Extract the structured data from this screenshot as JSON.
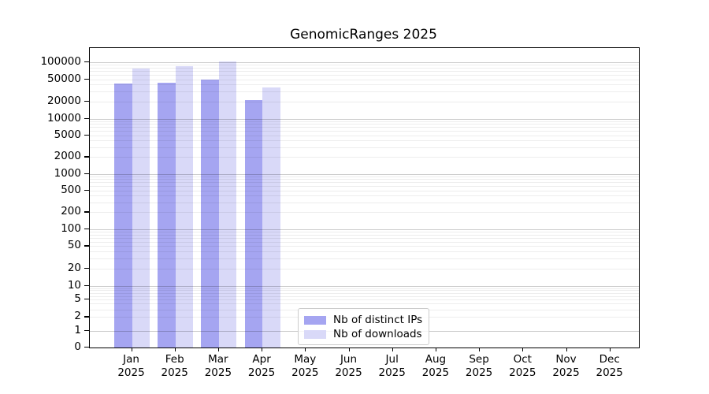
{
  "title": "GenomicRanges 2025",
  "legend": {
    "items": [
      {
        "label": "Nb of distinct IPs",
        "color": "#a5a5f1"
      },
      {
        "label": "Nb of downloads",
        "color": "#d9d9f8"
      }
    ]
  },
  "chart_data": {
    "type": "bar",
    "title": "GenomicRanges 2025",
    "year": "2025",
    "categories": [
      "Jan",
      "Feb",
      "Mar",
      "Apr",
      "May",
      "Jun",
      "Jul",
      "Aug",
      "Sep",
      "Oct",
      "Nov",
      "Dec"
    ],
    "series": [
      {
        "name": "Nb of distinct IPs",
        "color": "#a5a5f1",
        "values": [
          42000,
          43000,
          50000,
          21000,
          null,
          null,
          null,
          null,
          null,
          null,
          null,
          null
        ]
      },
      {
        "name": "Nb of downloads",
        "color": "#d9d9f8",
        "values": [
          78000,
          86000,
          103000,
          36000,
          null,
          null,
          null,
          null,
          null,
          null,
          null,
          null
        ]
      }
    ],
    "xlabel": "",
    "ylabel": "",
    "yscale": "symlog",
    "yticks": [
      0,
      1,
      2,
      5,
      10,
      20,
      50,
      100,
      200,
      500,
      1000,
      2000,
      5000,
      10000,
      20000,
      50000,
      100000
    ],
    "ylim": [
      0,
      130000
    ],
    "grid": "horizontal, log major and minor lines",
    "legend_position": "lower center"
  }
}
